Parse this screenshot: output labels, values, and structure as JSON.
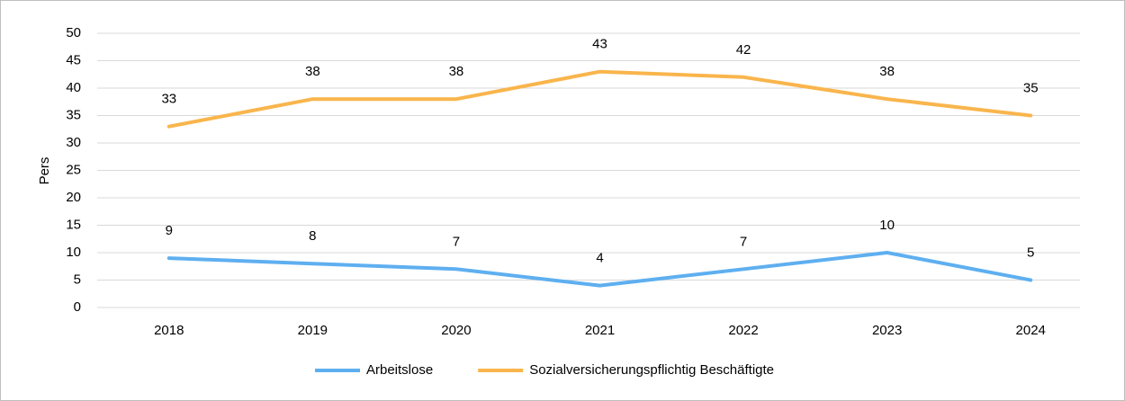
{
  "chart_data": {
    "type": "line",
    "categories": [
      "2018",
      "2019",
      "2020",
      "2021",
      "2022",
      "2023",
      "2024"
    ],
    "series": [
      {
        "name": "Arbeitslose",
        "color": "#5eaff0",
        "values": [
          9,
          8,
          7,
          4,
          7,
          10,
          5
        ]
      },
      {
        "name": "Sozialversicherungspflichtig Beschäftigte",
        "color": "#f9b54c",
        "values": [
          33,
          38,
          38,
          43,
          42,
          38,
          35
        ]
      }
    ],
    "y_label": "Pers",
    "ylim": [
      0,
      50
    ],
    "yticks": [
      0,
      5,
      10,
      15,
      20,
      25,
      30,
      35,
      40,
      45,
      50
    ],
    "grid": true,
    "legend": "bottom"
  }
}
